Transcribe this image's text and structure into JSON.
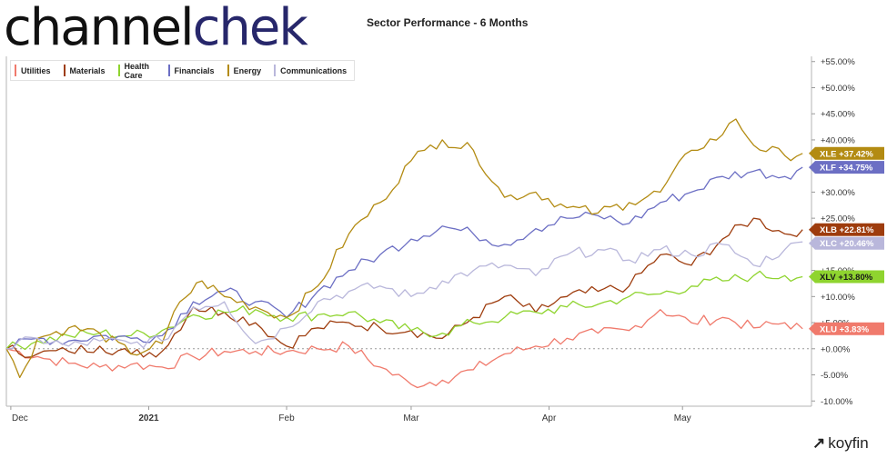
{
  "logo": {
    "part1": "channel",
    "part2": "chek"
  },
  "title": "Sector Performance - 6 Months",
  "brand": {
    "mark": "↗",
    "name": "koyfin"
  },
  "chart_data": {
    "type": "line",
    "title": "Sector Performance - 6 Months",
    "y_unit": "%",
    "ylim": [
      -11,
      56
    ],
    "y_ticks": [
      -10,
      -5,
      0,
      5,
      10,
      15,
      20,
      25,
      30,
      35,
      40,
      45,
      50,
      55
    ],
    "y_tick_labels": [
      "-10.00%",
      "-5.00%",
      "+0.00%",
      "+5.00%",
      "+10.00%",
      "+15.00%",
      "+20.00%",
      "+25.00%",
      "+30.00%",
      "+35.00%",
      "+40.00%",
      "+45.00%",
      "+50.00%",
      "+55.00%"
    ],
    "x_ticks": [
      {
        "label": "Dec",
        "date": "2020-12-01"
      },
      {
        "label": "2021",
        "date": "2021-01-01"
      },
      {
        "label": "Feb",
        "date": "2021-02-01"
      },
      {
        "label": "Mar",
        "date": "2021-03-01"
      },
      {
        "label": "Apr",
        "date": "2021-04-01"
      },
      {
        "label": "May",
        "date": "2021-05-01"
      }
    ],
    "xlim": [
      "2020-11-30",
      "2021-05-30"
    ],
    "zero_line": true,
    "legend_position": "top-left",
    "series": [
      {
        "name": "Utilities",
        "ticker": "XLU",
        "end_label": "+3.83%",
        "color": "#f07a6c",
        "points": [
          [
            "2020-11-30",
            0
          ],
          [
            "2020-12-07",
            -1.5
          ],
          [
            "2020-12-14",
            -2.8
          ],
          [
            "2020-12-21",
            -3.5
          ],
          [
            "2020-12-28",
            -3
          ],
          [
            "2021-01-04",
            -3.5
          ],
          [
            "2021-01-11",
            -1.5
          ],
          [
            "2021-01-18",
            -0.5
          ],
          [
            "2021-01-25",
            -0.5
          ],
          [
            "2021-02-01",
            -0.5
          ],
          [
            "2021-02-08",
            0
          ],
          [
            "2021-02-15",
            0.5
          ],
          [
            "2021-02-22",
            -3.5
          ],
          [
            "2021-03-01",
            -6.8
          ],
          [
            "2021-03-08",
            -6
          ],
          [
            "2021-03-15",
            -4
          ],
          [
            "2021-03-22",
            -1
          ],
          [
            "2021-03-29",
            0.5
          ],
          [
            "2021-04-05",
            2
          ],
          [
            "2021-04-12",
            3
          ],
          [
            "2021-04-19",
            3.5
          ],
          [
            "2021-04-26",
            7.5
          ],
          [
            "2021-05-03",
            5
          ],
          [
            "2021-05-10",
            6
          ],
          [
            "2021-05-17",
            4
          ],
          [
            "2021-05-24",
            5
          ],
          [
            "2021-05-28",
            3.83
          ]
        ]
      },
      {
        "name": "Materials",
        "ticker": "XLB",
        "end_label": "+22.81%",
        "color": "#9e3c0d",
        "points": [
          [
            "2020-11-30",
            0
          ],
          [
            "2020-12-07",
            -1
          ],
          [
            "2020-12-14",
            -0.5
          ],
          [
            "2020-12-21",
            0.5
          ],
          [
            "2020-12-28",
            -1
          ],
          [
            "2021-01-04",
            -0.5
          ],
          [
            "2021-01-11",
            8
          ],
          [
            "2021-01-18",
            7
          ],
          [
            "2021-01-25",
            5
          ],
          [
            "2021-02-01",
            0.5
          ],
          [
            "2021-02-08",
            4
          ],
          [
            "2021-02-15",
            5
          ],
          [
            "2021-02-22",
            4
          ],
          [
            "2021-03-01",
            3.5
          ],
          [
            "2021-03-08",
            2
          ],
          [
            "2021-03-15",
            6
          ],
          [
            "2021-03-22",
            10
          ],
          [
            "2021-03-29",
            7
          ],
          [
            "2021-04-05",
            10
          ],
          [
            "2021-04-12",
            11
          ],
          [
            "2021-04-19",
            12
          ],
          [
            "2021-04-26",
            18
          ],
          [
            "2021-05-03",
            16
          ],
          [
            "2021-05-10",
            21
          ],
          [
            "2021-05-17",
            25
          ],
          [
            "2021-05-24",
            22
          ],
          [
            "2021-05-28",
            22.81
          ]
        ]
      },
      {
        "name": "Health Care",
        "ticker": "XLV",
        "end_label": "+13.80%",
        "color": "#8fd42f",
        "points": [
          [
            "2020-11-30",
            0
          ],
          [
            "2020-12-07",
            1.5
          ],
          [
            "2020-12-14",
            2.5
          ],
          [
            "2020-12-21",
            3
          ],
          [
            "2020-12-28",
            2.5
          ],
          [
            "2021-01-04",
            3.5
          ],
          [
            "2021-01-11",
            6.5
          ],
          [
            "2021-01-18",
            7
          ],
          [
            "2021-01-25",
            7.5
          ],
          [
            "2021-02-01",
            6
          ],
          [
            "2021-02-08",
            6.5
          ],
          [
            "2021-02-15",
            7
          ],
          [
            "2021-02-22",
            5
          ],
          [
            "2021-03-01",
            3.5
          ],
          [
            "2021-03-08",
            3
          ],
          [
            "2021-03-15",
            5
          ],
          [
            "2021-03-22",
            6
          ],
          [
            "2021-03-29",
            7
          ],
          [
            "2021-04-05",
            8
          ],
          [
            "2021-04-12",
            8.5
          ],
          [
            "2021-04-19",
            10
          ],
          [
            "2021-04-26",
            10.5
          ],
          [
            "2021-05-03",
            12
          ],
          [
            "2021-05-10",
            13
          ],
          [
            "2021-05-17",
            14
          ],
          [
            "2021-05-24",
            14
          ],
          [
            "2021-05-28",
            13.8
          ]
        ]
      },
      {
        "name": "Financials",
        "ticker": "XLF",
        "end_label": "+34.75%",
        "color": "#6c6fc4",
        "points": [
          [
            "2020-11-30",
            0
          ],
          [
            "2020-12-07",
            2
          ],
          [
            "2020-12-14",
            1.5
          ],
          [
            "2020-12-21",
            2.5
          ],
          [
            "2020-12-28",
            2
          ],
          [
            "2021-01-04",
            2.5
          ],
          [
            "2021-01-11",
            9
          ],
          [
            "2021-01-18",
            11
          ],
          [
            "2021-01-25",
            9
          ],
          [
            "2021-02-01",
            6
          ],
          [
            "2021-02-08",
            11
          ],
          [
            "2021-02-15",
            15
          ],
          [
            "2021-02-22",
            18
          ],
          [
            "2021-03-01",
            21
          ],
          [
            "2021-03-08",
            23.5
          ],
          [
            "2021-03-15",
            22
          ],
          [
            "2021-03-22",
            20
          ],
          [
            "2021-03-29",
            23
          ],
          [
            "2021-04-05",
            25
          ],
          [
            "2021-04-12",
            25.5
          ],
          [
            "2021-04-19",
            24
          ],
          [
            "2021-04-26",
            28
          ],
          [
            "2021-05-03",
            30
          ],
          [
            "2021-05-10",
            33
          ],
          [
            "2021-05-17",
            34
          ],
          [
            "2021-05-24",
            33
          ],
          [
            "2021-05-28",
            34.75
          ]
        ]
      },
      {
        "name": "Energy",
        "ticker": "XLE",
        "end_label": "+37.42%",
        "color": "#b38b12",
        "points": [
          [
            "2020-11-30",
            0
          ],
          [
            "2020-12-03",
            -5.5
          ],
          [
            "2020-12-07",
            2
          ],
          [
            "2020-12-14",
            4
          ],
          [
            "2020-12-21",
            3
          ],
          [
            "2020-12-28",
            -1
          ],
          [
            "2021-01-04",
            1
          ],
          [
            "2021-01-08",
            9
          ],
          [
            "2021-01-13",
            13
          ],
          [
            "2021-01-18",
            10
          ],
          [
            "2021-01-25",
            8
          ],
          [
            "2021-02-01",
            6
          ],
          [
            "2021-02-08",
            12
          ],
          [
            "2021-02-15",
            22
          ],
          [
            "2021-02-22",
            28
          ],
          [
            "2021-03-01",
            36
          ],
          [
            "2021-03-04",
            38
          ],
          [
            "2021-03-08",
            40
          ],
          [
            "2021-03-15",
            38
          ],
          [
            "2021-03-22",
            29
          ],
          [
            "2021-03-29",
            30
          ],
          [
            "2021-04-05",
            27
          ],
          [
            "2021-04-12",
            26
          ],
          [
            "2021-04-19",
            28
          ],
          [
            "2021-04-26",
            30
          ],
          [
            "2021-05-03",
            38
          ],
          [
            "2021-05-10",
            41
          ],
          [
            "2021-05-13",
            44
          ],
          [
            "2021-05-17",
            39
          ],
          [
            "2021-05-24",
            37
          ],
          [
            "2021-05-28",
            37.42
          ]
        ]
      },
      {
        "name": "Communications",
        "ticker": "XLC",
        "end_label": "+20.46%",
        "color": "#b9b7db",
        "points": [
          [
            "2020-11-30",
            0
          ],
          [
            "2020-12-07",
            2
          ],
          [
            "2020-12-14",
            0.5
          ],
          [
            "2020-12-21",
            1.5
          ],
          [
            "2020-12-28",
            1
          ],
          [
            "2021-01-04",
            1.5
          ],
          [
            "2021-01-11",
            8
          ],
          [
            "2021-01-18",
            9
          ],
          [
            "2021-01-25",
            1
          ],
          [
            "2021-02-01",
            4
          ],
          [
            "2021-02-08",
            9
          ],
          [
            "2021-02-15",
            11
          ],
          [
            "2021-02-22",
            12
          ],
          [
            "2021-03-01",
            10
          ],
          [
            "2021-03-08",
            13
          ],
          [
            "2021-03-15",
            15
          ],
          [
            "2021-03-22",
            16
          ],
          [
            "2021-03-29",
            14
          ],
          [
            "2021-04-05",
            18
          ],
          [
            "2021-04-12",
            19
          ],
          [
            "2021-04-19",
            17
          ],
          [
            "2021-04-26",
            19
          ],
          [
            "2021-05-03",
            18
          ],
          [
            "2021-05-10",
            20
          ],
          [
            "2021-05-17",
            16
          ],
          [
            "2021-05-24",
            19
          ],
          [
            "2021-05-28",
            20.46
          ]
        ]
      }
    ]
  }
}
